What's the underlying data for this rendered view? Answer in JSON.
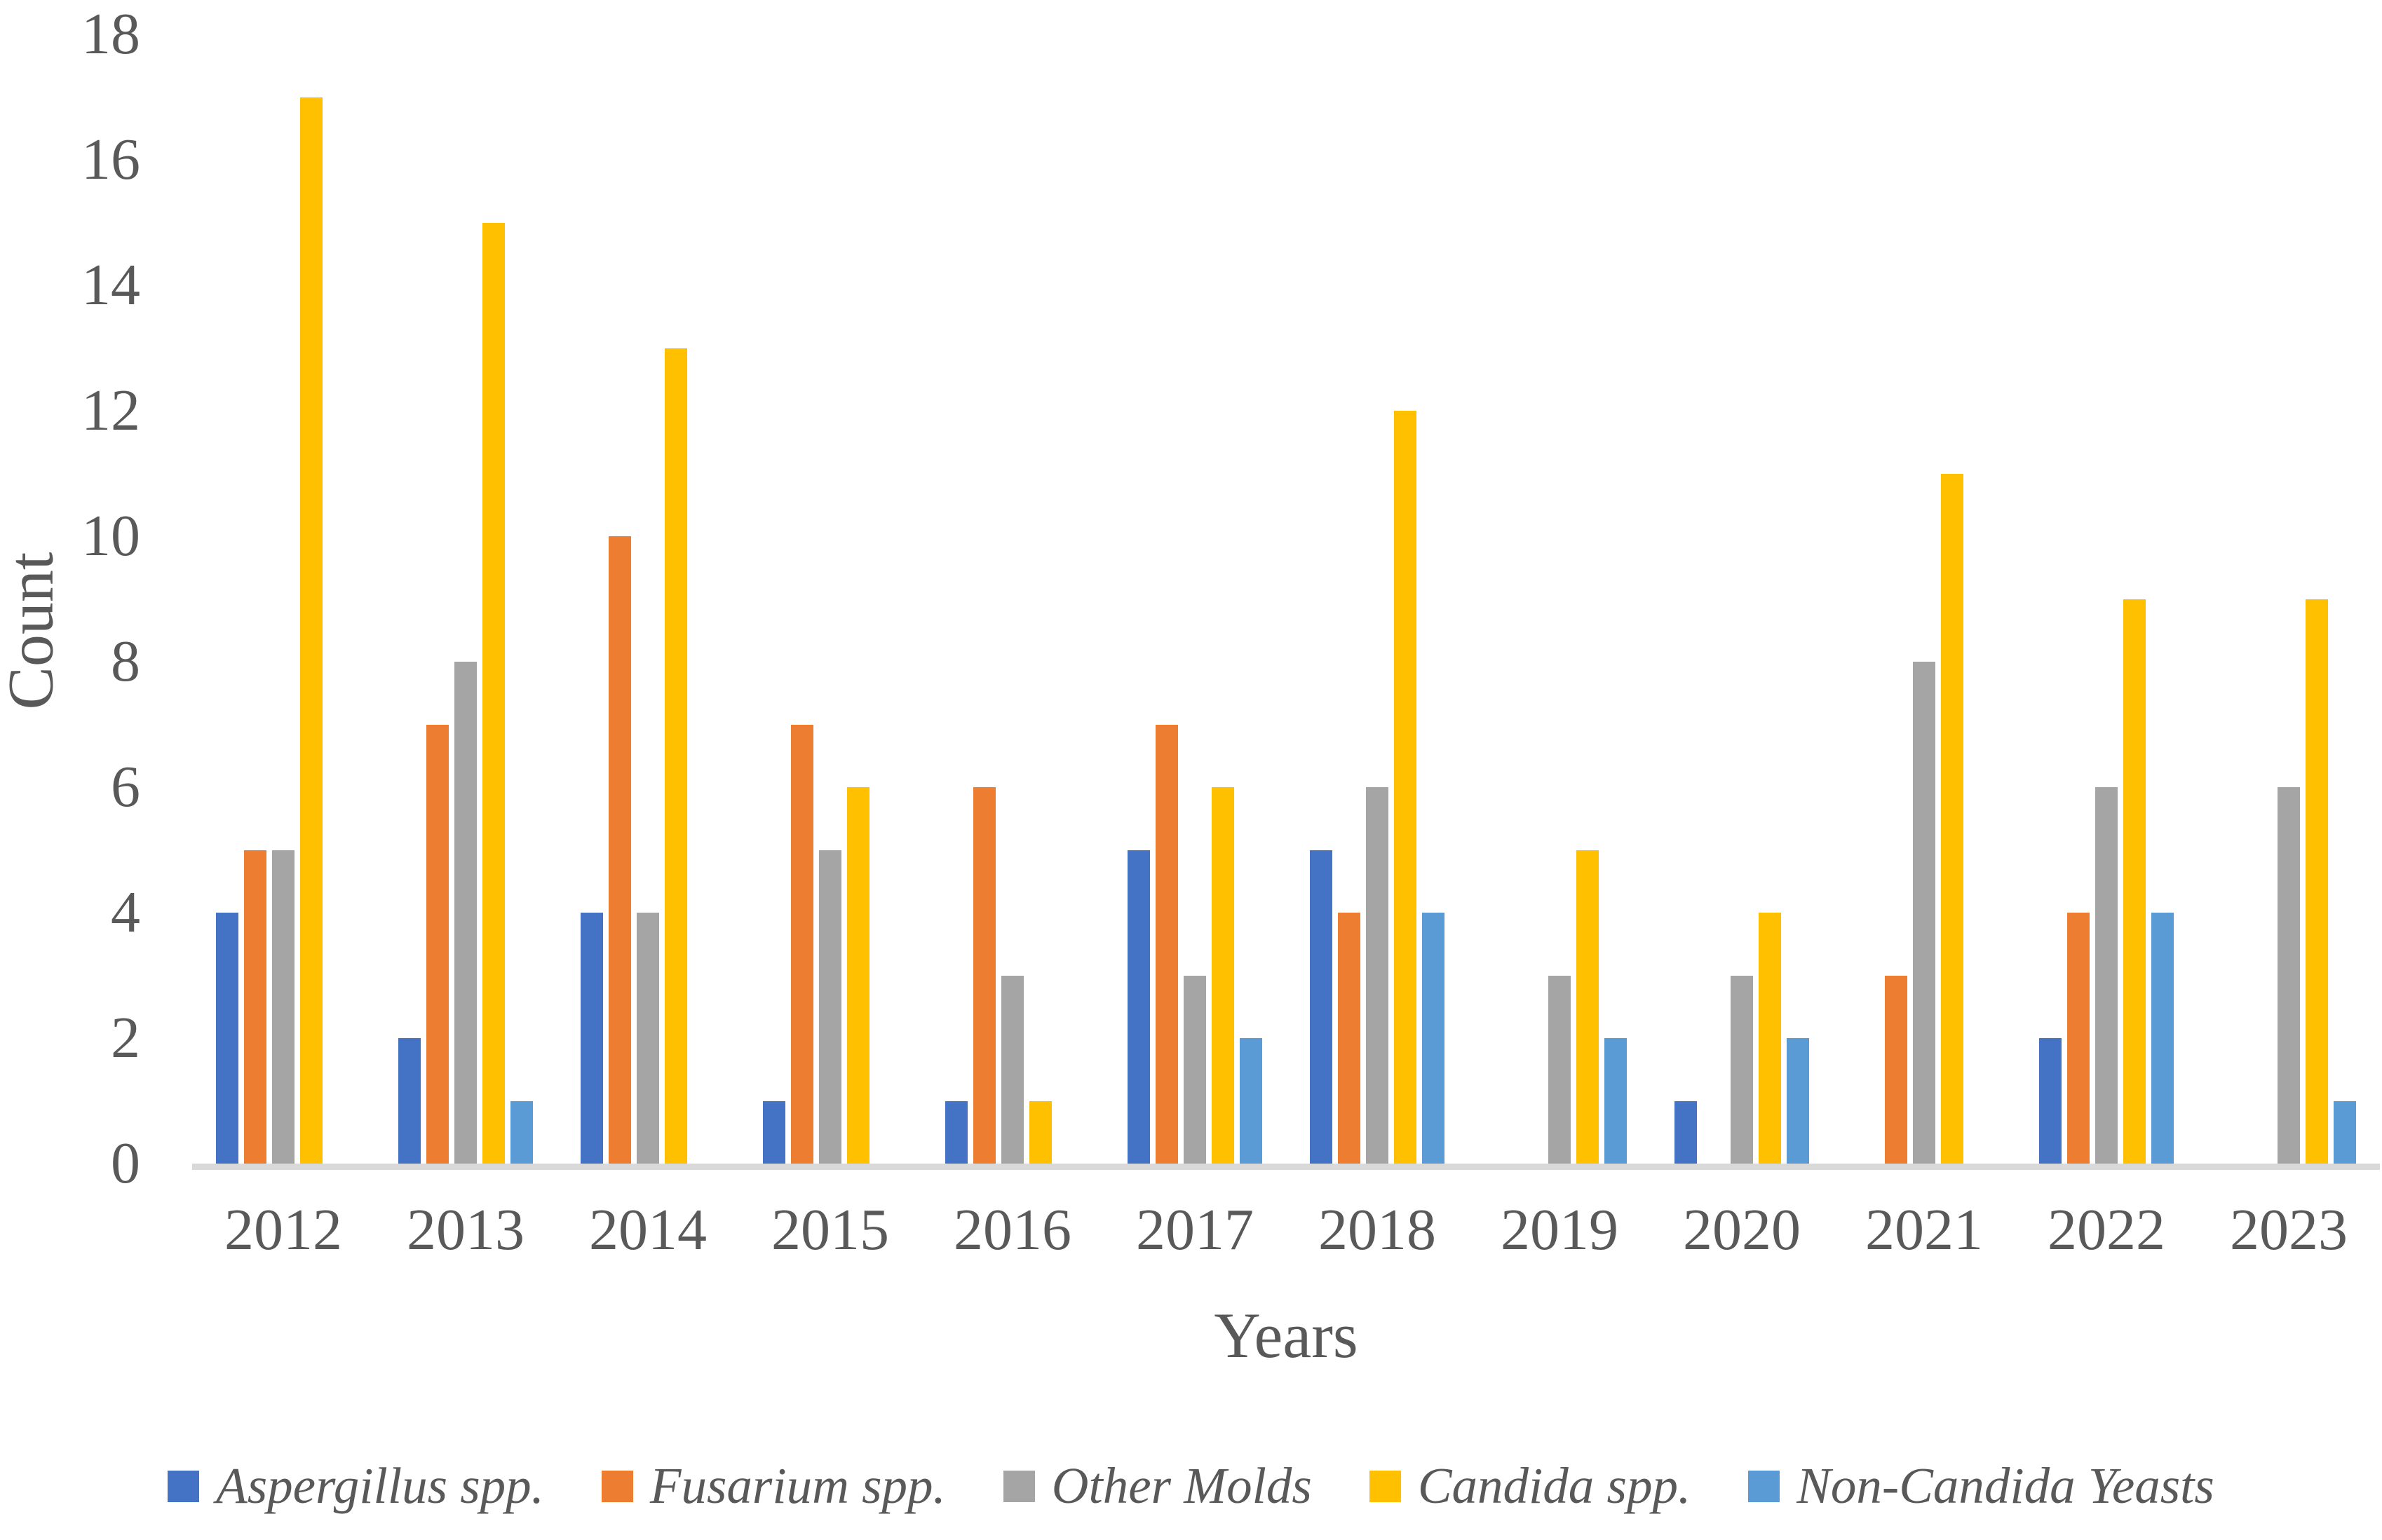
{
  "axes": {
    "y_title": "Count",
    "x_title": "Years",
    "text_color": "#595959",
    "axis_line_color": "#D9D9D9"
  },
  "chart_data": {
    "type": "bar",
    "title": "",
    "xlabel": "Years",
    "ylabel": "Count",
    "categories": [
      "2012",
      "2013",
      "2014",
      "2015",
      "2016",
      "2017",
      "2018",
      "2019",
      "2020",
      "2021",
      "2022",
      "2023"
    ],
    "series": [
      {
        "name": "Aspergillus spp.",
        "color": "#4472C4",
        "values": [
          4,
          2,
          4,
          1,
          1,
          5,
          5,
          0,
          1,
          0,
          2,
          0
        ]
      },
      {
        "name": "Fusarium spp.",
        "color": "#ED7D31",
        "values": [
          5,
          7,
          10,
          7,
          6,
          7,
          4,
          0,
          0,
          3,
          4,
          0
        ]
      },
      {
        "name": "Other Molds",
        "color": "#A5A5A5",
        "values": [
          5,
          8,
          4,
          5,
          3,
          3,
          6,
          3,
          3,
          8,
          6,
          6
        ]
      },
      {
        "name": "Candida spp.",
        "color": "#FFC000",
        "values": [
          17,
          15,
          13,
          6,
          1,
          6,
          12,
          5,
          4,
          11,
          9,
          9
        ]
      },
      {
        "name": "Non-Candida Yeasts",
        "color": "#5B9BD5",
        "values": [
          0,
          1,
          0,
          0,
          0,
          2,
          4,
          2,
          2,
          0,
          4,
          1
        ]
      }
    ],
    "ylim": [
      0,
      18
    ],
    "yticks": [
      0,
      2,
      4,
      6,
      8,
      10,
      12,
      14,
      16,
      18
    ],
    "grid": false,
    "legend_position": "bottom"
  }
}
